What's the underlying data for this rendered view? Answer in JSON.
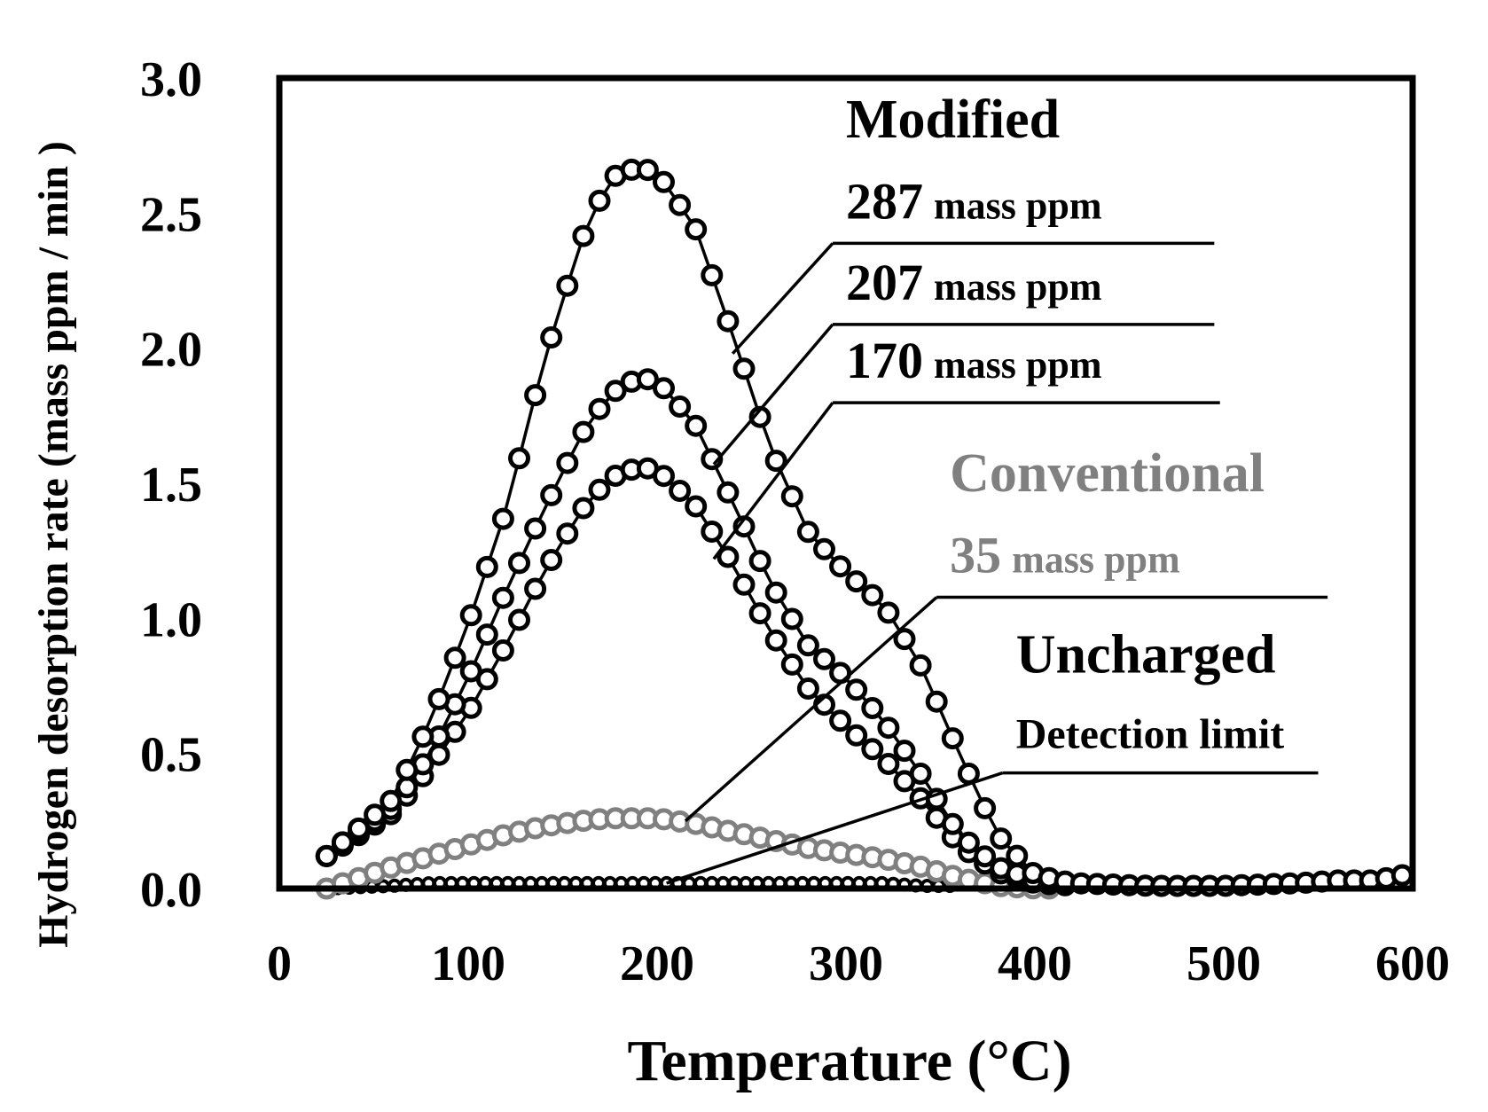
{
  "chart_data": {
    "type": "scatter",
    "title": "",
    "xlabel": "Temperature (°C)",
    "ylabel": "Hydrogen desorption rate (mass ppm / min )",
    "xlim": [
      0,
      600
    ],
    "ylim": [
      0,
      3.0
    ],
    "x_ticks": [
      0,
      100,
      200,
      300,
      400,
      500,
      600
    ],
    "x_tick_labels": [
      "0",
      "100",
      "200",
      "300",
      "400",
      "500",
      "600"
    ],
    "y_ticks": [
      0,
      0.5,
      1.0,
      1.5,
      2.0,
      2.5,
      3.0
    ],
    "y_tick_labels": [
      "0.0",
      "0.5",
      "1.0",
      "1.5",
      "2.0",
      "2.5",
      "3.0"
    ],
    "grid": false,
    "colors": {
      "black": "#000000",
      "gray": "#808080"
    },
    "series_anchors": {
      "x": [
        25,
        60,
        80,
        100,
        120,
        140,
        160,
        175,
        190,
        200,
        220,
        240,
        260,
        280,
        300,
        320,
        340,
        360,
        380,
        400,
        420,
        460,
        500,
        540,
        560,
        580,
        595
      ],
      "mod287": [
        0.12,
        0.33,
        0.62,
        0.98,
        1.4,
        1.95,
        2.4,
        2.63,
        2.67,
        2.65,
        2.45,
        2.05,
        1.63,
        1.32,
        1.17,
        1.05,
        0.82,
        0.5,
        0.2,
        0.05,
        0.02,
        0.01,
        0.01,
        0.02,
        0.03,
        0.03,
        0.05
      ],
      "mod207": [
        0.12,
        0.3,
        0.5,
        0.78,
        1.1,
        1.4,
        1.68,
        1.83,
        1.89,
        1.88,
        1.72,
        1.43,
        1.13,
        0.9,
        0.78,
        0.62,
        0.42,
        0.2,
        0.08,
        0.03,
        0.01,
        0.01,
        0.01,
        0.01,
        0.01,
        0.01,
        0.01
      ],
      "mod170": [
        0.12,
        0.28,
        0.45,
        0.65,
        0.9,
        1.17,
        1.4,
        1.52,
        1.56,
        1.55,
        1.42,
        1.2,
        0.95,
        0.74,
        0.6,
        0.48,
        0.33,
        0.16,
        0.06,
        0.02,
        0.01,
        0.01,
        0.01,
        0.01,
        0.01,
        0.01,
        0.01
      ],
      "conv35": [
        0.0,
        0.08,
        0.12,
        0.16,
        0.2,
        0.23,
        0.25,
        0.26,
        0.26,
        0.26,
        0.24,
        0.21,
        0.18,
        0.15,
        0.13,
        0.11,
        0.08,
        0.04,
        0.01,
        0.0,
        0.0,
        0.0,
        0.0,
        0.0,
        0.0,
        0.0,
        0.0
      ],
      "uncharged": [
        0.0,
        0.01,
        0.02,
        0.02,
        0.02,
        0.02,
        0.02,
        0.02,
        0.02,
        0.02,
        0.02,
        0.02,
        0.02,
        0.02,
        0.02,
        0.02,
        0.01,
        0.01,
        0.0,
        0.0,
        0.0,
        0.0,
        0.0,
        0.0,
        0.0,
        0.0,
        0.0
      ]
    },
    "series": [
      {
        "id": "mod287",
        "name": "287 mass ppm",
        "group": "Modified",
        "color": "#000000",
        "x_start": 25,
        "x_end": 595,
        "x_step": 8.5
      },
      {
        "id": "mod207",
        "name": "207 mass ppm",
        "group": "Modified",
        "color": "#000000",
        "x_start": 25,
        "x_end": 420,
        "x_step": 8.5
      },
      {
        "id": "mod170",
        "name": "170 mass ppm",
        "group": "Modified",
        "color": "#000000",
        "x_start": 25,
        "x_end": 420,
        "x_step": 8.5
      },
      {
        "id": "conv35",
        "name": "35 mass ppm",
        "group": "Conventional",
        "color": "#808080",
        "x_start": 25,
        "x_end": 410,
        "x_step": 8.5
      },
      {
        "id": "uncharged",
        "name": "Detection limit",
        "group": "Uncharged",
        "color": "#000000",
        "x_start": 25,
        "x_end": 360,
        "x_step": 6
      }
    ],
    "annotations": [
      {
        "id": "group_modified",
        "text": "Modified",
        "color": "#000000",
        "data_x": 300,
        "data_y": 2.78
      },
      {
        "id": "label_287",
        "value": "287",
        "unit": "mass ppm",
        "text": "287 mass ppm",
        "color": "#000000",
        "data_x": 300,
        "data_y": 2.48,
        "leader_to": {
          "x": 240,
          "y": 1.98
        },
        "underline_to_x": 495
      },
      {
        "id": "label_207",
        "value": "207",
        "unit": "mass ppm",
        "text": "207 mass ppm",
        "color": "#000000",
        "data_x": 300,
        "data_y": 2.18,
        "leader_to": {
          "x": 230,
          "y": 1.57
        },
        "underline_to_x": 495
      },
      {
        "id": "label_170",
        "value": "170",
        "unit": "mass ppm",
        "text": "170 mass ppm",
        "color": "#000000",
        "data_x": 300,
        "data_y": 1.89,
        "leader_to": {
          "x": 230,
          "y": 1.22
        },
        "underline_to_x": 498
      },
      {
        "id": "group_conventional",
        "text": "Conventional",
        "color": "#808080",
        "data_x": 355,
        "data_y": 1.47
      },
      {
        "id": "label_35",
        "value": "35",
        "unit": "mass ppm",
        "text": "35 mass ppm",
        "color": "#808080",
        "data_x": 355,
        "data_y": 1.17,
        "leader_to": {
          "x": 215,
          "y": 0.25
        },
        "underline_to_x": 555
      },
      {
        "id": "group_uncharged",
        "text": "Uncharged",
        "color": "#000000",
        "data_x": 390,
        "data_y": 0.8
      },
      {
        "id": "label_detection",
        "text": "Detection limit",
        "color": "#000000",
        "data_x": 390,
        "data_y": 0.52,
        "leader_to": {
          "x": 205,
          "y": 0.02
        },
        "underline_to_x": 550
      }
    ]
  }
}
